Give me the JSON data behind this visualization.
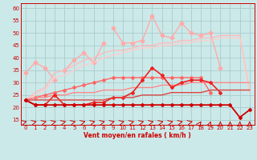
{
  "xlabel": "Vent moyen/en rafales ( km/h )",
  "bg_color": "#cce9e9",
  "grid_color": "#aacccc",
  "x": [
    0,
    1,
    2,
    3,
    4,
    5,
    6,
    7,
    8,
    9,
    10,
    11,
    12,
    13,
    14,
    15,
    16,
    17,
    18,
    19,
    20,
    21,
    22,
    23
  ],
  "series": [
    {
      "name": "s1_light_pink_star_top",
      "y": [
        34,
        38,
        36,
        31,
        null,
        null,
        null,
        null,
        null,
        52,
        46,
        46,
        47,
        57,
        49,
        48,
        54,
        50,
        49,
        50,
        36,
        null,
        null,
        null
      ],
      "color": "#ffaaaa",
      "lw": 1.0,
      "marker": "D",
      "ms": 2.5
    },
    {
      "name": "s1b_light_pink_star_top_segment2",
      "y": [
        null,
        null,
        null,
        null,
        35,
        39,
        42,
        38,
        46,
        null,
        null,
        null,
        null,
        null,
        null,
        null,
        null,
        null,
        null,
        null,
        null,
        null,
        null,
        null
      ],
      "color": "#ffaaaa",
      "lw": 1.0,
      "marker": "D",
      "ms": 2.5
    },
    {
      "name": "s2_light_pink_no_marker_top_envelope",
      "y": [
        23,
        26,
        28,
        34,
        35,
        37,
        39,
        40,
        42,
        43,
        43,
        44,
        45,
        45,
        46,
        46,
        47,
        47,
        48,
        48,
        49,
        49,
        49,
        27
      ],
      "color": "#ffbbbb",
      "lw": 1.0,
      "marker": null,
      "ms": 0
    },
    {
      "name": "s3_light_pink_no_marker_second_envelope",
      "y": [
        23,
        25,
        27,
        32,
        33,
        35,
        37,
        38,
        40,
        41,
        42,
        43,
        44,
        44,
        45,
        45,
        46,
        46,
        47,
        47,
        48,
        48,
        48,
        26
      ],
      "color": "#ffcccc",
      "lw": 1.0,
      "marker": null,
      "ms": 0
    },
    {
      "name": "s4_med_red_diamond_mid",
      "y": [
        23,
        24,
        25,
        26,
        27,
        28,
        29,
        30,
        31,
        32,
        32,
        32,
        32,
        32,
        32,
        32,
        32,
        32,
        32,
        26,
        null,
        null,
        null,
        null
      ],
      "color": "#ff6666",
      "lw": 1.0,
      "marker": "D",
      "ms": 2.0
    },
    {
      "name": "s5_med_red_no_marker",
      "y": [
        23,
        24,
        24,
        25,
        25,
        26,
        26,
        26,
        27,
        27,
        27,
        28,
        28,
        28,
        29,
        29,
        29,
        30,
        30,
        30,
        30,
        30,
        30,
        30
      ],
      "color": "#ff8888",
      "lw": 1.0,
      "marker": null,
      "ms": 0
    },
    {
      "name": "s6_dark_red_diamond_jagged",
      "y": [
        23,
        21,
        21,
        25,
        21,
        21,
        21,
        22,
        22,
        24,
        24,
        26,
        31,
        36,
        33,
        28,
        30,
        31,
        31,
        30,
        26,
        null,
        null,
        null
      ],
      "color": "#ee2222",
      "lw": 1.2,
      "marker": "D",
      "ms": 2.0
    },
    {
      "name": "s7_dark_red_no_marker_smooth",
      "y": [
        23,
        23,
        23,
        23,
        23,
        23,
        23,
        23,
        23,
        24,
        24,
        24,
        25,
        25,
        25,
        26,
        26,
        26,
        26,
        27,
        27,
        27,
        27,
        27
      ],
      "color": "#dd4444",
      "lw": 1.0,
      "marker": null,
      "ms": 0
    },
    {
      "name": "s8_darkest_red_dip",
      "y": [
        23,
        21,
        21,
        21,
        21,
        21,
        21,
        21,
        21,
        21,
        21,
        21,
        21,
        21,
        21,
        21,
        21,
        21,
        21,
        21,
        21,
        21,
        16,
        19
      ],
      "color": "#cc0000",
      "lw": 1.3,
      "marker": "D",
      "ms": 2.0
    }
  ],
  "arrow_angles": [
    45,
    45,
    45,
    45,
    45,
    45,
    45,
    45,
    45,
    45,
    45,
    45,
    45,
    45,
    45,
    45,
    45,
    45,
    10,
    5,
    0,
    0,
    0,
    0
  ],
  "xlim": [
    -0.5,
    23.5
  ],
  "ylim": [
    13,
    62
  ],
  "yticks": [
    15,
    20,
    25,
    30,
    35,
    40,
    45,
    50,
    55,
    60
  ],
  "xticks": [
    0,
    1,
    2,
    3,
    4,
    5,
    6,
    7,
    8,
    9,
    10,
    11,
    12,
    13,
    14,
    15,
    16,
    17,
    18,
    19,
    20,
    21,
    22,
    23
  ]
}
